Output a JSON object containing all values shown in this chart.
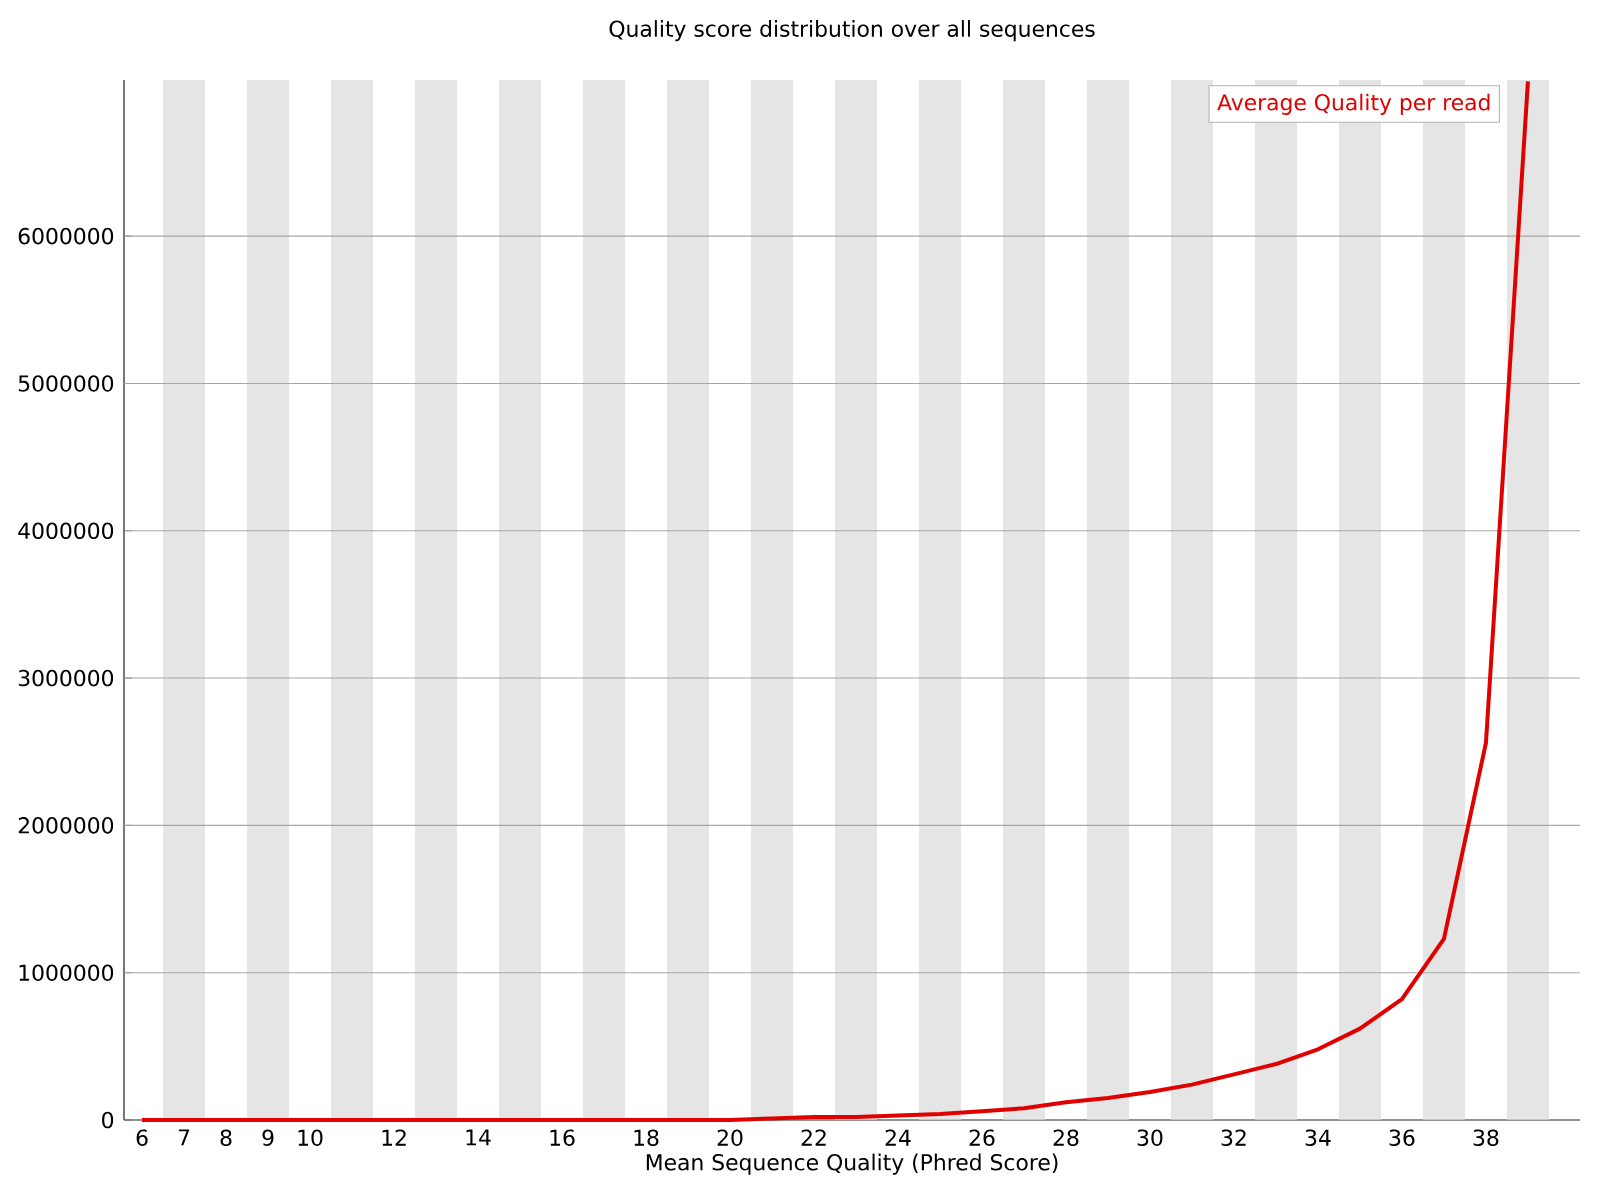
{
  "chart_data": {
    "type": "line",
    "title": "Quality score distribution over all sequences",
    "xlabel": "Mean Sequence Quality (Phred Score)",
    "categories": [
      "6",
      "7",
      "8",
      "9",
      "10",
      null,
      "12",
      null,
      "14",
      null,
      "16",
      null,
      "18",
      null,
      "20",
      null,
      "22",
      null,
      "24",
      null,
      "26",
      null,
      "28",
      null,
      "30",
      null,
      "32",
      null,
      "34",
      null,
      "36",
      null,
      "38",
      null
    ],
    "series": [
      {
        "name": "Average Quality per read",
        "color": "#e00000",
        "values": [
          0,
          0,
          0,
          0,
          0,
          0,
          0,
          0,
          0,
          0,
          0,
          0,
          0,
          0,
          0,
          10000,
          20000,
          20000,
          30000,
          40000,
          60000,
          80000,
          120000,
          150000,
          190000,
          240000,
          310000,
          380000,
          480000,
          620000,
          820000,
          1230000,
          2560000,
          7050000
        ]
      }
    ],
    "ylim": [
      0,
      7060000
    ],
    "yticks": [
      0,
      1000000,
      2000000,
      3000000,
      4000000,
      5000000,
      6000000
    ],
    "grid": "y",
    "legend": "top right",
    "marker": "none",
    "line_style": "solid"
  }
}
